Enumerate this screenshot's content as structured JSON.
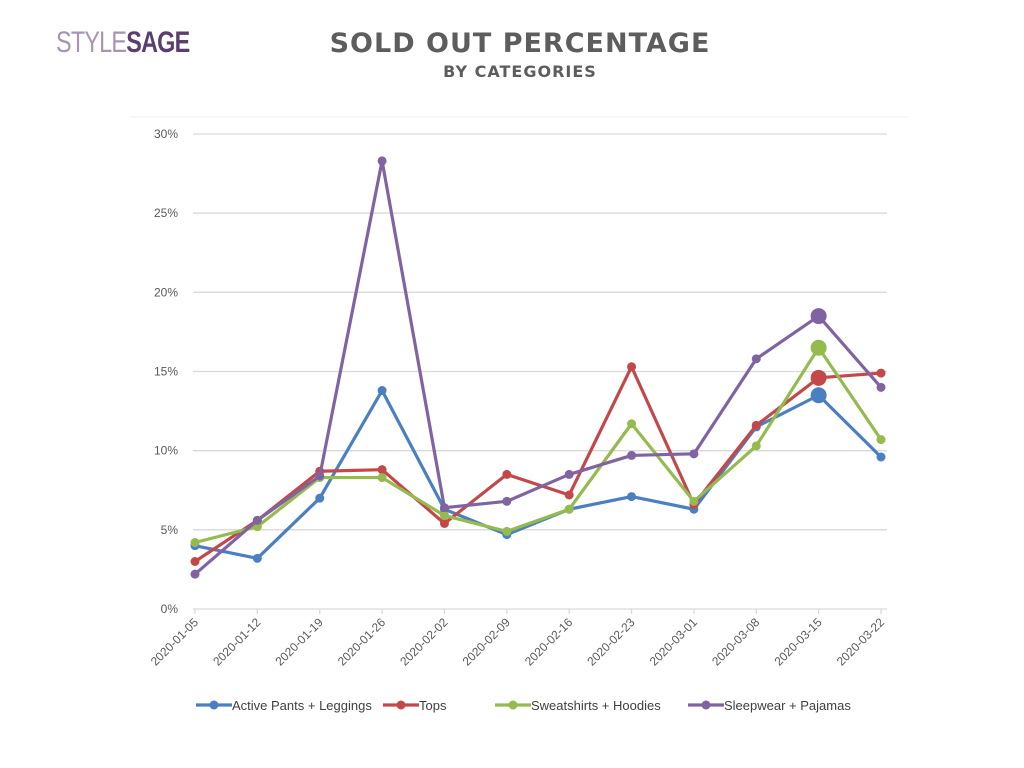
{
  "logo": {
    "part1": "STYLE",
    "part2": "SAGE"
  },
  "header": {
    "title": "SOLD OUT PERCENTAGE",
    "subtitle": "BY CATEGORIES"
  },
  "chart_data": {
    "type": "line",
    "title": "SOLD OUT PERCENTAGE",
    "subtitle": "BY CATEGORIES",
    "xlabel": "",
    "ylabel": "",
    "ylim": [
      0,
      30
    ],
    "yticks": [
      0,
      5,
      10,
      15,
      20,
      25,
      30
    ],
    "ytick_labels": [
      "0%",
      "5%",
      "10%",
      "15%",
      "20%",
      "25%",
      "30%"
    ],
    "grid": true,
    "legend_position": "bottom",
    "x": [
      "2020-01-05",
      "2020-01-12",
      "2020-01-19",
      "2020-01-26",
      "2020-02-02",
      "2020-02-09",
      "2020-02-16",
      "2020-02-23",
      "2020-03-01",
      "2020-03-08",
      "2020-03-15",
      "2020-03-22"
    ],
    "highlight_index": 10,
    "series": [
      {
        "name": "Active Pants + Leggings",
        "color": "#4a7fc1",
        "values": [
          4.0,
          3.2,
          7.0,
          13.8,
          6.3,
          4.7,
          6.3,
          7.1,
          6.3,
          11.5,
          13.5,
          9.6
        ]
      },
      {
        "name": "Tops",
        "color": "#c4484a",
        "values": [
          3.0,
          5.6,
          8.7,
          8.8,
          5.4,
          8.5,
          7.2,
          15.3,
          6.6,
          11.6,
          14.6,
          14.9
        ]
      },
      {
        "name": "Sweatshirts + Hoodies",
        "color": "#95bb4f",
        "values": [
          4.2,
          5.2,
          8.3,
          8.3,
          5.9,
          4.9,
          6.3,
          11.7,
          6.8,
          10.3,
          16.5,
          10.7
        ]
      },
      {
        "name": "Sleepwear + Pajamas",
        "color": "#8064a2",
        "values": [
          2.2,
          5.6,
          8.4,
          28.3,
          6.4,
          6.8,
          8.5,
          9.7,
          9.8,
          15.8,
          18.5,
          14.0
        ]
      }
    ]
  }
}
